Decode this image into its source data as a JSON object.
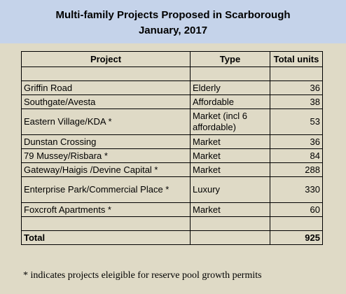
{
  "title_line1": "Multi-family Projects Proposed in Scarborough",
  "title_line2": "January, 2017",
  "columns": {
    "project": "Project",
    "type": "Type",
    "units": "Total units"
  },
  "rows": [
    {
      "project": "Griffin Road",
      "type": "Elderly",
      "units": "36"
    },
    {
      "project": "Southgate/Avesta",
      "type": "Affordable",
      "units": "38"
    },
    {
      "project": "Eastern Village/KDA *",
      "type": "Market (incl 6 affordable)",
      "units": "53"
    },
    {
      "project": "Dunstan Crossing",
      "type": "Market",
      "units": "36"
    },
    {
      "project": "79 Mussey/Risbara *",
      "type": "Market",
      "units": "84"
    },
    {
      "project": "Gateway/Haigis /Devine Capital *",
      "type": "Market",
      "units": "288"
    },
    {
      "project": "Enterprise Park/Commercial Place *",
      "type": "Luxury",
      "units": "330"
    },
    {
      "project": "Foxcroft Apartments *",
      "type": "Market",
      "units": "60"
    }
  ],
  "total": {
    "label": "Total",
    "units": "925"
  },
  "footnote": "* indicates projects eleigible for reserve pool growth permits"
}
